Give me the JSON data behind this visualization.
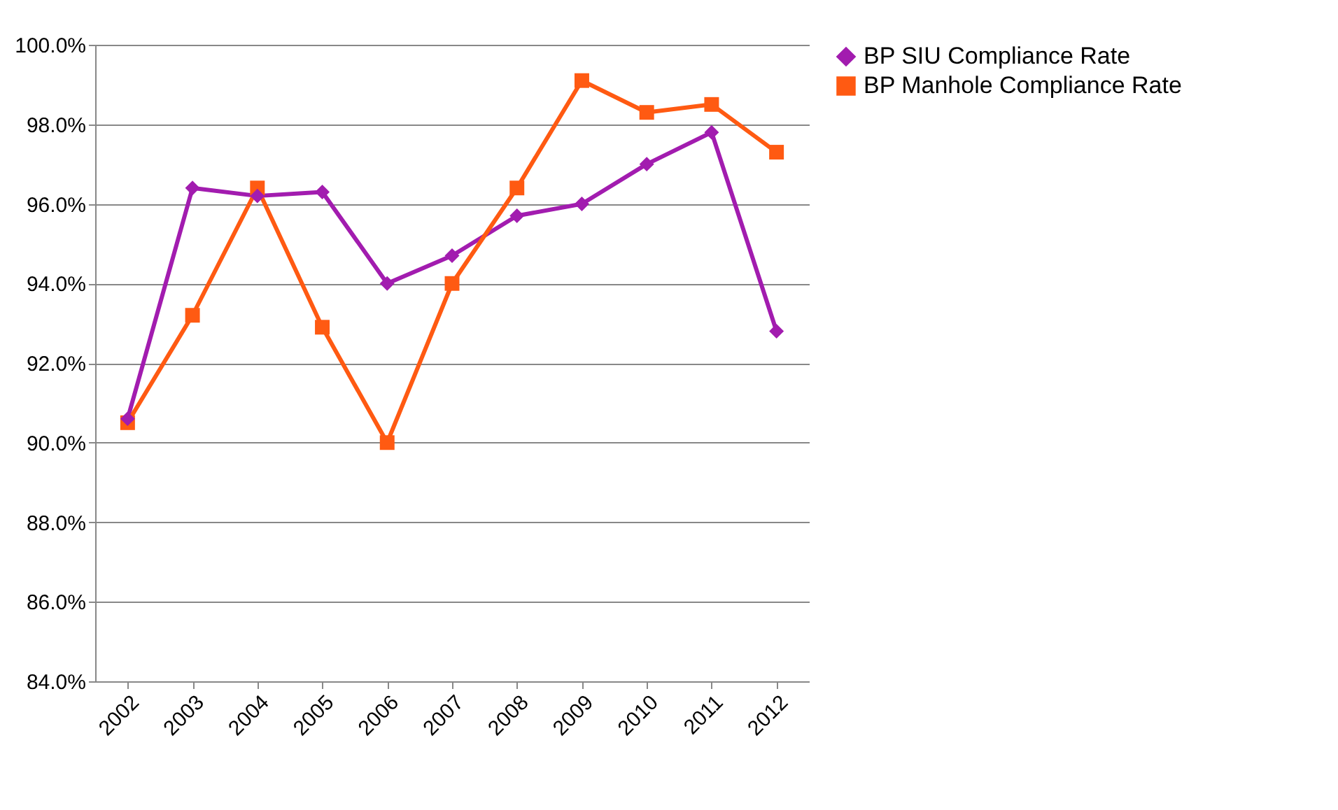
{
  "chart_data": {
    "type": "line",
    "categories": [
      "2002",
      "2003",
      "2004",
      "2005",
      "2006",
      "2007",
      "2008",
      "2009",
      "2010",
      "2011",
      "2012"
    ],
    "series": [
      {
        "name": "BP SIU Compliance Rate",
        "color": "#a21caf",
        "marker": "diamond",
        "values": [
          90.6,
          96.4,
          96.2,
          96.3,
          94.0,
          94.7,
          95.7,
          96.0,
          97.0,
          97.8,
          92.8
        ]
      },
      {
        "name": "BP Manhole Compliance Rate",
        "color": "#ff5a12",
        "marker": "square",
        "values": [
          90.5,
          93.2,
          96.4,
          92.9,
          90.0,
          94.0,
          96.4,
          99.1,
          98.3,
          98.5,
          97.3
        ]
      }
    ],
    "ylim": [
      84,
      100
    ],
    "yticks": [
      {
        "value": 84,
        "label": "84.0%"
      },
      {
        "value": 86,
        "label": "86.0%"
      },
      {
        "value": 88,
        "label": "88.0%"
      },
      {
        "value": 90,
        "label": "90.0%"
      },
      {
        "value": 92,
        "label": "92.0%"
      },
      {
        "value": 94,
        "label": "94.0%"
      },
      {
        "value": 96,
        "label": "96.0%"
      },
      {
        "value": 98,
        "label": "98.0%"
      },
      {
        "value": 100,
        "label": "100.0%"
      }
    ],
    "grid": "y",
    "legend": "right",
    "line_style": "solid"
  }
}
